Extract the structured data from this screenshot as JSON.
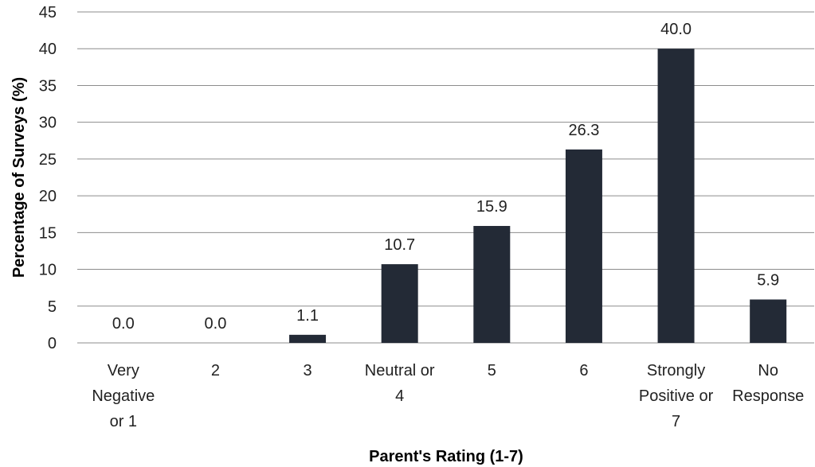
{
  "chart_data": {
    "type": "bar",
    "categories": [
      [
        "Very",
        "Negative",
        "or 1"
      ],
      [
        "2"
      ],
      [
        "3"
      ],
      [
        "Neutral or",
        "4"
      ],
      [
        "5"
      ],
      [
        "6"
      ],
      [
        "Strongly",
        "Positive or",
        "7"
      ],
      [
        "No",
        "Response"
      ]
    ],
    "values": [
      0.0,
      0.0,
      1.1,
      10.7,
      15.9,
      26.3,
      40.0,
      5.9
    ],
    "data_labels": [
      "0.0",
      "0.0",
      "1.1",
      "10.7",
      "15.9",
      "26.3",
      "40.0",
      "5.9"
    ],
    "title": "",
    "xlabel": "Parent's Rating (1-7)",
    "ylabel": "Percentage of Surveys (%)",
    "ylim": [
      0,
      45
    ],
    "yticks": [
      0,
      5,
      10,
      15,
      20,
      25,
      30,
      35,
      40,
      45
    ],
    "grid": true,
    "legend": "none",
    "bar_color": "#232a36"
  }
}
